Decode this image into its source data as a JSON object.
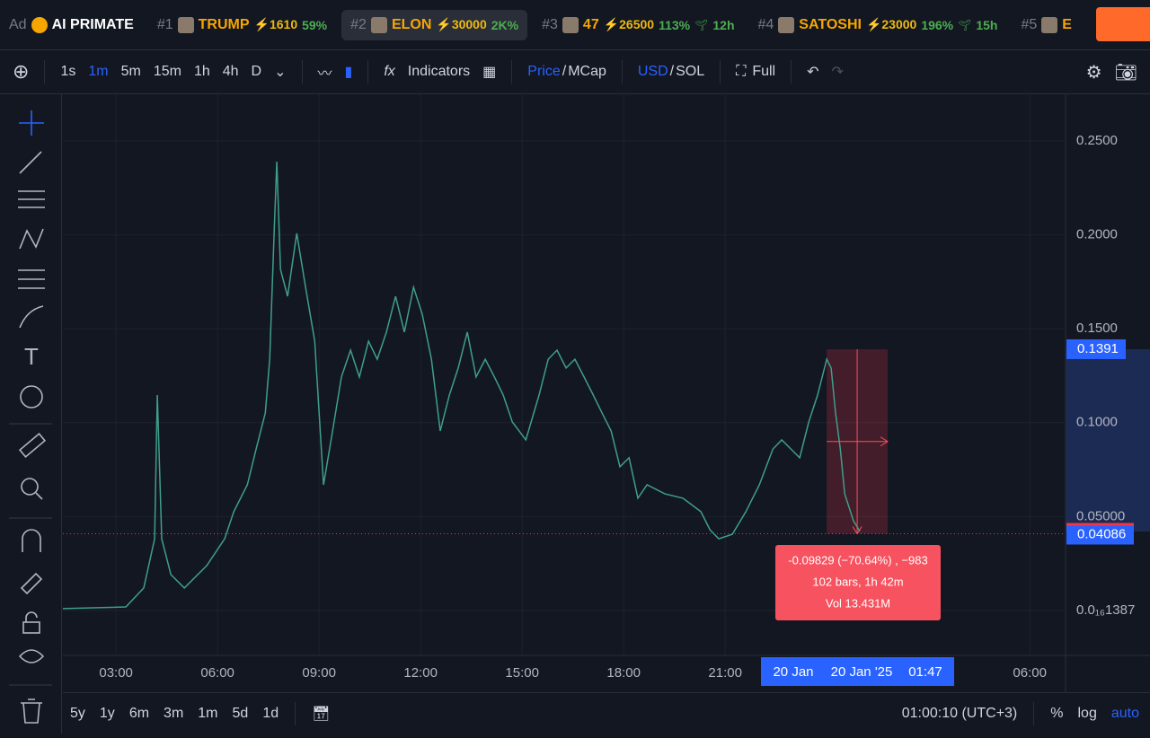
{
  "ticker_bar": {
    "ad": "Ad",
    "ad_name": "AI PRIMATE",
    "items": [
      {
        "rank": "#1",
        "name": "TRUMP",
        "boost": "⚡1610",
        "change": "59%"
      },
      {
        "rank": "#2",
        "name": "ELON",
        "boost": "⚡30000",
        "change": "2K%"
      },
      {
        "rank": "#3",
        "name": "47",
        "boost": "⚡26500",
        "change": "113%",
        "age": "12h"
      },
      {
        "rank": "#4",
        "name": "SATOSHI",
        "boost": "⚡23000",
        "change": "196%",
        "age": "15h"
      },
      {
        "rank": "#5",
        "name": "E"
      }
    ]
  },
  "toolbar": {
    "intervals": [
      "1s",
      "1m",
      "5m",
      "15m",
      "1h",
      "4h",
      "D"
    ],
    "indicators": "Indicators",
    "price": "Price",
    "mcap": "MCap",
    "usd": "USD",
    "sol": "SOL",
    "full": "Full"
  },
  "chart_data": {
    "type": "line",
    "color": "#3f9e8c",
    "x": [
      1.43,
      3.29,
      3.82,
      4.14,
      4.22,
      4.35,
      4.62,
      5.02,
      5.68,
      6.21,
      6.48,
      6.88,
      7.14,
      7.41,
      7.54,
      7.67,
      7.75,
      7.86,
      8.07,
      8.34,
      8.6,
      8.87,
      9.13,
      9.4,
      9.66,
      9.93,
      10.19,
      10.46,
      10.72,
      10.99,
      11.26,
      11.52,
      11.79,
      12.05,
      12.32,
      12.58,
      12.85,
      13.11,
      13.38,
      13.64,
      13.91,
      14.18,
      14.44,
      14.71,
      15.11,
      15.5,
      15.77,
      16.03,
      16.3,
      16.56,
      16.83,
      17.1,
      17.36,
      17.63,
      17.89,
      18.16,
      18.42,
      18.69,
      19.22,
      19.75,
      20.28,
      20.55,
      20.81,
      21.21,
      21.61,
      22.01,
      22.41,
      22.67,
      22.94,
      23.2,
      23.47,
      23.73,
      24.0,
      24.13,
      24.26,
      24.4,
      24.53,
      24.79,
      24.98
    ],
    "values": [
      0.001,
      0.0019,
      0.012,
      0.0382,
      0.1147,
      0.0382,
      0.0191,
      0.012,
      0.0239,
      0.0382,
      0.0526,
      0.0669,
      0.086,
      0.1052,
      0.1338,
      0.2008,
      0.239,
      0.1816,
      0.1673,
      0.2008,
      0.1721,
      0.1434,
      0.0669,
      0.0956,
      0.1243,
      0.1386,
      0.1243,
      0.1434,
      0.1338,
      0.1482,
      0.1673,
      0.1482,
      0.1721,
      0.1577,
      0.1338,
      0.0956,
      0.1147,
      0.1291,
      0.1482,
      0.1243,
      0.1338,
      0.1243,
      0.1147,
      0.1004,
      0.0908,
      0.1147,
      0.1338,
      0.1386,
      0.1291,
      0.1338,
      0.1243,
      0.1147,
      0.1052,
      0.0956,
      0.0765,
      0.0813,
      0.0598,
      0.0669,
      0.0621,
      0.0598,
      0.0526,
      0.043,
      0.0382,
      0.0406,
      0.0526,
      0.0669,
      0.086,
      0.0908,
      0.086,
      0.0813,
      0.1004,
      0.1147,
      0.1338,
      0.1291,
      0.1052,
      0.086,
      0.0621,
      0.0478,
      0.0421
    ],
    "xlim": [
      1.43,
      31.03
    ],
    "xticks": [
      {
        "value": 3,
        "label": "03:00"
      },
      {
        "value": 6,
        "label": "06:00"
      },
      {
        "value": 9,
        "label": "09:00"
      },
      {
        "value": 12,
        "label": "12:00"
      },
      {
        "value": 15,
        "label": "15:00"
      },
      {
        "value": 18,
        "label": "18:00"
      },
      {
        "value": 21,
        "label": "21:00"
      },
      {
        "value": 30,
        "label": "06:00"
      }
    ],
    "ylim": [
      -0.0239,
      0.2734
    ],
    "yticks": [
      {
        "value": 1.387e-17,
        "label": "0.0₁₆1387"
      },
      {
        "value": 0.05,
        "label": "0.05000"
      },
      {
        "value": 0.1,
        "label": "0.1000"
      },
      {
        "value": 0.15,
        "label": "0.1500"
      },
      {
        "value": 0.2,
        "label": "0.2000"
      },
      {
        "value": 0.25,
        "label": "0.2500"
      }
    ],
    "grid": true,
    "last_price": 0.04086,
    "measure": {
      "x": [
        24.0,
        25.8
      ],
      "y": [
        0.1391,
        0.04086
      ],
      "lines": [
        "-0.09829 (−70.64%) , −983",
        "102 bars, 1h 42m",
        "Vol 13.431M"
      ]
    },
    "cursor_labels": [
      "20 Jan",
      "20 Jan '25",
      "01:47"
    ]
  },
  "bottom_bar": {
    "ranges": [
      "5y",
      "1y",
      "6m",
      "3m",
      "1m",
      "5d",
      "1d"
    ],
    "clock": "01:00:10 (UTC+3)",
    "percent": "%",
    "log": "log",
    "auto": "auto"
  }
}
